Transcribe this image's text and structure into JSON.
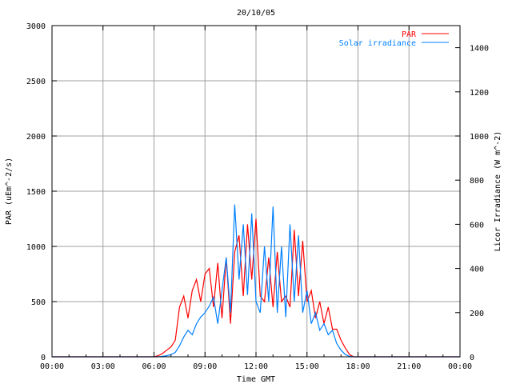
{
  "chart_data": {
    "type": "line",
    "title": "20/10/05",
    "xlabel": "Time GMT",
    "ylabel": "PAR (uEm^-2/s)",
    "y2label": "Licor Irradiance (W m^-2)",
    "xlim": [
      0,
      24
    ],
    "ylim": [
      0,
      3000
    ],
    "y2lim": [
      0,
      1500
    ],
    "grid": true,
    "legend_position": "top-right",
    "x_ticks": [
      0,
      3,
      6,
      9,
      12,
      15,
      18,
      21,
      24
    ],
    "x_tick_labels": [
      "00:00",
      "03:00",
      "06:00",
      "09:00",
      "12:00",
      "15:00",
      "18:00",
      "21:00",
      "00:00"
    ],
    "y_ticks": [
      0,
      500,
      1000,
      1500,
      2000,
      2500,
      3000
    ],
    "y_tick_labels": [
      "0",
      "500",
      "1000",
      "1500",
      "2000",
      "2500",
      "3000"
    ],
    "y2_ticks": [
      0,
      200,
      400,
      600,
      800,
      1000,
      1200,
      1400
    ],
    "y2_tick_labels": [
      "0",
      "200",
      "400",
      "600",
      "800",
      "1000",
      "1200",
      "1400"
    ],
    "series": [
      {
        "name": "PAR",
        "axis": "left",
        "color": "#ff0000",
        "x": [
          0,
          6,
          6.25,
          6.5,
          6.75,
          7,
          7.25,
          7.5,
          7.75,
          8,
          8.25,
          8.5,
          8.75,
          9,
          9.25,
          9.5,
          9.75,
          10,
          10.25,
          10.5,
          10.75,
          11,
          11.25,
          11.5,
          11.75,
          12,
          12.25,
          12.5,
          12.75,
          13,
          13.25,
          13.5,
          13.75,
          14,
          14.25,
          14.5,
          14.75,
          15,
          15.25,
          15.5,
          15.75,
          16,
          16.25,
          16.5,
          16.75,
          17,
          17.25,
          17.5,
          17.75,
          18,
          24
        ],
        "values": [
          0,
          0,
          10,
          30,
          60,
          90,
          150,
          450,
          550,
          350,
          600,
          700,
          500,
          750,
          800,
          450,
          850,
          350,
          900,
          300,
          950,
          1100,
          550,
          1200,
          700,
          1250,
          550,
          500,
          900,
          450,
          950,
          500,
          550,
          450,
          1150,
          550,
          1050,
          500,
          600,
          350,
          500,
          300,
          450,
          250,
          250,
          150,
          80,
          20,
          0,
          0,
          0
        ]
      },
      {
        "name": "Solar irradiance",
        "axis": "right",
        "color": "#0080ff",
        "x": [
          0,
          6,
          6.25,
          6.5,
          6.75,
          7,
          7.25,
          7.5,
          7.75,
          8,
          8.25,
          8.5,
          8.75,
          9,
          9.25,
          9.5,
          9.75,
          10,
          10.25,
          10.5,
          10.75,
          11,
          11.25,
          11.5,
          11.75,
          12,
          12.25,
          12.5,
          12.75,
          13,
          13.25,
          13.5,
          13.75,
          14,
          14.25,
          14.5,
          14.75,
          15,
          15.25,
          15.5,
          15.75,
          16,
          16.25,
          16.5,
          16.75,
          17,
          17.25,
          17.5,
          17.75,
          18,
          24
        ],
        "values": [
          0,
          0,
          0,
          2,
          5,
          10,
          20,
          50,
          90,
          120,
          100,
          150,
          180,
          200,
          230,
          270,
          150,
          300,
          450,
          200,
          690,
          350,
          600,
          280,
          650,
          250,
          200,
          500,
          250,
          680,
          200,
          500,
          180,
          600,
          250,
          550,
          200,
          300,
          150,
          200,
          120,
          150,
          100,
          120,
          60,
          30,
          10,
          2,
          0,
          0,
          0
        ]
      }
    ]
  }
}
